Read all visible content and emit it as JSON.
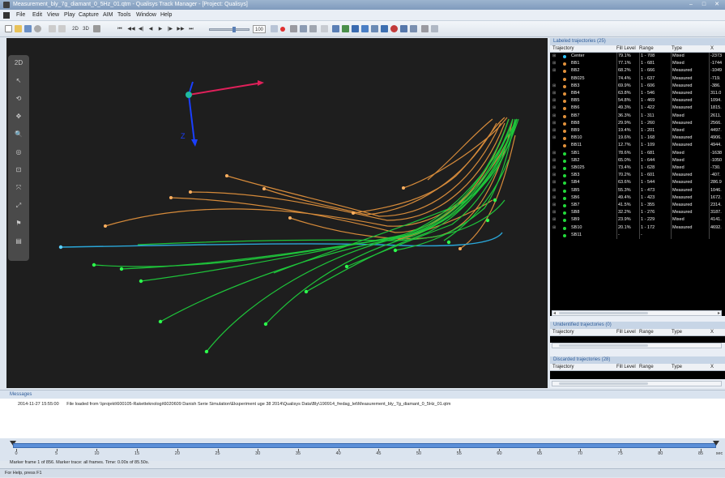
{
  "window": {
    "title": "Measurement_bly_7g_diamant_0_5Hz_01.qtm - Qualisys Track Manager - [Project: Qualisys]",
    "controls": [
      "–",
      "□",
      "✕"
    ]
  },
  "menu": [
    "File",
    "Edit",
    "View",
    "Play",
    "Capture",
    "AIM",
    "Tools",
    "Window",
    "Help"
  ],
  "toolbar": {
    "view_2d": "2D",
    "view_3d": "3D",
    "zoom_label": "100",
    "play_buttons": [
      "⏮",
      "◀◀",
      "◀|",
      "◀",
      "▶",
      "|▶",
      "▶▶",
      "⏭"
    ]
  },
  "view3d": {
    "axis_z_label": "Z",
    "left_tools": [
      "2D",
      "↖",
      "⟲",
      "✥",
      "🔍",
      "◎",
      "⊡",
      "⤧",
      "⤢",
      "⚑",
      "▤"
    ]
  },
  "labeled": {
    "header": "Labeled trajectories (25)",
    "columns": [
      "Trajectory",
      "Fill Level",
      "Range",
      "Type",
      "X"
    ],
    "rows": [
      {
        "name": "Center",
        "fill": "79.1%",
        "range": "1 - 708",
        "type": "Mixed",
        "x": "-2373",
        "color": "#2ec4ff",
        "expand": "⊞"
      },
      {
        "name": "BB1",
        "fill": "77.1%",
        "range": "1 - 681",
        "type": "Mixed",
        "x": "-1744",
        "color": "#e0903a",
        "expand": "⊞"
      },
      {
        "name": "BB2",
        "fill": "68.2%",
        "range": "1 - 666",
        "type": "Measured",
        "x": "-1049",
        "color": "#e0903a",
        "expand": "⊞"
      },
      {
        "name": "BB025",
        "fill": "74.4%",
        "range": "1 - 637",
        "type": "Measured",
        "x": "-719.",
        "color": "#e0903a",
        "expand": ""
      },
      {
        "name": "BB3",
        "fill": "69.9%",
        "range": "1 - 606",
        "type": "Measured",
        "x": "-386.",
        "color": "#e0903a",
        "expand": "⊞"
      },
      {
        "name": "BB4",
        "fill": "63.8%",
        "range": "1 - 546",
        "type": "Measured",
        "x": "311.0",
        "color": "#e0903a",
        "expand": "⊞"
      },
      {
        "name": "BB5",
        "fill": "54.8%",
        "range": "1 - 469",
        "type": "Measured",
        "x": "1094.",
        "color": "#e0903a",
        "expand": "⊞"
      },
      {
        "name": "BB6",
        "fill": "49.3%",
        "range": "1 - 422",
        "type": "Measured",
        "x": "1815.",
        "color": "#e0903a",
        "expand": "⊞"
      },
      {
        "name": "BB7",
        "fill": "36.3%",
        "range": "1 - 311",
        "type": "Mixed",
        "x": "2611.",
        "color": "#e0903a",
        "expand": "⊞"
      },
      {
        "name": "BB8",
        "fill": "29.9%",
        "range": "1 - 260",
        "type": "Measured",
        "x": "2566.",
        "color": "#e0903a",
        "expand": "⊞"
      },
      {
        "name": "BB9",
        "fill": "19.4%",
        "range": "1 - 201",
        "type": "Mixed",
        "x": "4497.",
        "color": "#e0903a",
        "expand": "⊞"
      },
      {
        "name": "BB10",
        "fill": "19.6%",
        "range": "1 - 168",
        "type": "Measured",
        "x": "4906.",
        "color": "#e0903a",
        "expand": "⊞"
      },
      {
        "name": "BB11",
        "fill": "12.7%",
        "range": "1 - 109",
        "type": "Measured",
        "x": "4944.",
        "color": "#e0903a",
        "expand": ""
      },
      {
        "name": "SB1",
        "fill": "78.6%",
        "range": "1 - 681",
        "type": "Mixed",
        "x": "-1638",
        "color": "#22d83a",
        "expand": "⊞"
      },
      {
        "name": "SB2",
        "fill": "65.0%",
        "range": "1 - 644",
        "type": "Mixed",
        "x": "-1050",
        "color": "#22d83a",
        "expand": "⊞"
      },
      {
        "name": "SB025",
        "fill": "73.4%",
        "range": "1 - 628",
        "type": "Mixed",
        "x": "-730.",
        "color": "#22d83a",
        "expand": "⊞"
      },
      {
        "name": "SB3",
        "fill": "70.2%",
        "range": "1 - 601",
        "type": "Measured",
        "x": "-407.",
        "color": "#22d83a",
        "expand": "⊞"
      },
      {
        "name": "SB4",
        "fill": "63.6%",
        "range": "1 - 544",
        "type": "Measured",
        "x": "286.9",
        "color": "#22d83a",
        "expand": "⊞"
      },
      {
        "name": "SB5",
        "fill": "55.3%",
        "range": "1 - 473",
        "type": "Measured",
        "x": "1046.",
        "color": "#22d83a",
        "expand": "⊞"
      },
      {
        "name": "SB6",
        "fill": "49.4%",
        "range": "1 - 423",
        "type": "Measured",
        "x": "1672.",
        "color": "#22d83a",
        "expand": "⊞"
      },
      {
        "name": "SB7",
        "fill": "41.5%",
        "range": "1 - 355",
        "type": "Measured",
        "x": "2314.",
        "color": "#22d83a",
        "expand": "⊞"
      },
      {
        "name": "SB8",
        "fill": "32.2%",
        "range": "1 - 276",
        "type": "Measured",
        "x": "3187.",
        "color": "#22d83a",
        "expand": "⊞"
      },
      {
        "name": "SB9",
        "fill": "23.9%",
        "range": "1 - 229",
        "type": "Mixed",
        "x": "4141.",
        "color": "#22d83a",
        "expand": "⊞"
      },
      {
        "name": "SB10",
        "fill": "20.1%",
        "range": "1 - 172",
        "type": "Measured",
        "x": "4692.",
        "color": "#22d83a",
        "expand": "⊞"
      },
      {
        "name": "SB11",
        "fill": "-",
        "range": "-",
        "type": "",
        "x": "",
        "color": "#22d83a",
        "expand": ""
      }
    ]
  },
  "unidentified": {
    "header": "Unidentified trajectories (0)",
    "columns": [
      "Trajectory",
      "Fill Level",
      "Range",
      "Type",
      "X"
    ]
  },
  "discarded": {
    "header": "Discarded trajectories (28)",
    "columns": [
      "Trajectory",
      "Fill Level",
      "Range",
      "Type",
      "X"
    ]
  },
  "messages": {
    "header": "Messages",
    "timestamp": "2014-11-27 15:55:00",
    "text": "File loaded from \\\\projekt\\600105-Raketteknologi\\6020609 Danish Serie Simulation\\Eksperiment uge 38 2014\\Qualisys Data\\Bly\\190914_fredag_let\\Measurement_bly_7g_diamant_0_5Hz_01.qtm"
  },
  "timeline": {
    "labels": [
      "0",
      "5",
      "10",
      "15",
      "20",
      "25",
      "30",
      "35",
      "40",
      "45",
      "50",
      "55",
      "60",
      "65",
      "70",
      "75",
      "80",
      "85"
    ],
    "unit": "sec",
    "max": 85.5,
    "frame_info": "Marker frame 1 of 856. Marker trace: all frames. Time: 0.00s of 85.50s."
  },
  "status": "For Help, press F1"
}
